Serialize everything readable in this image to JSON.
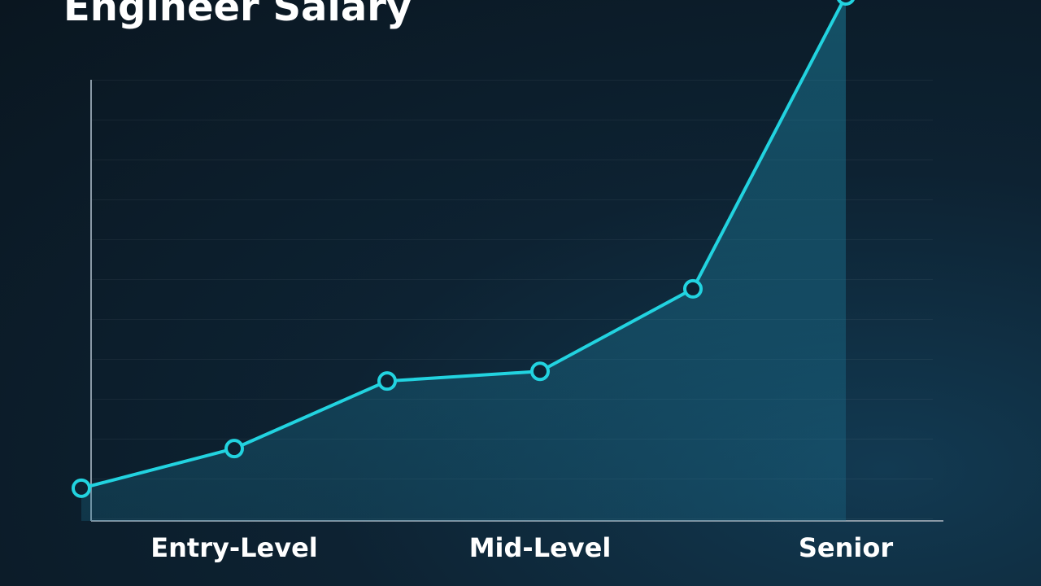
{
  "chart_data": {
    "type": "line",
    "title": "Engineer Salary",
    "categories": [
      null,
      "Entry-Level",
      null,
      "Mid-Level",
      null,
      "Senior"
    ],
    "series": [
      {
        "color": "#22d3e0",
        "values": [
          7.4,
          16.4,
          31.7,
          33.9,
          52.6,
          119
        ]
      }
    ],
    "ylim": [
      0,
      100
    ]
  }
}
